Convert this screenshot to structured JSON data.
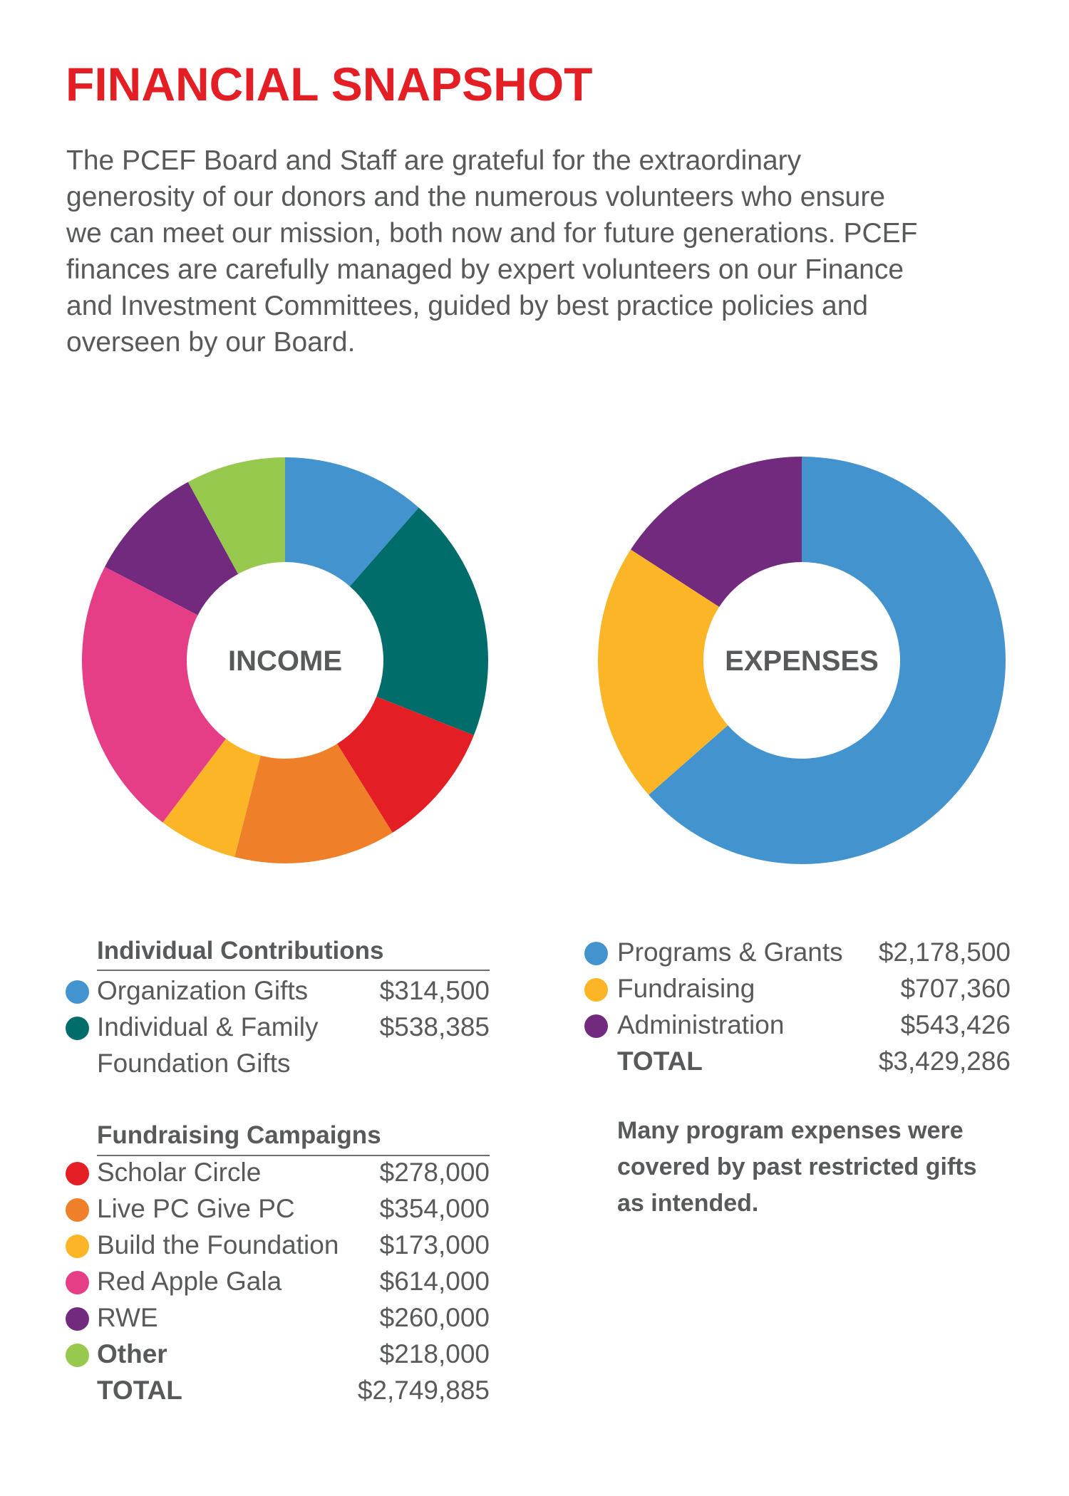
{
  "title": "FINANCIAL SNAPSHOT",
  "intro_lines": [
    "The PCEF Board and Staff are grateful for the extraordinary",
    "generosity of our donors and the numerous volunteers who ensure",
    "we can meet our mission, both now and for future generations. PCEF",
    "finances are carefully managed by expert volunteers on our Finance",
    "and Investment Committees, guided by best practice policies and",
    "overseen by our Board."
  ],
  "income": {
    "center_label": "INCOME",
    "group1_heading": "Individual Contributions",
    "group2_heading": "Fundraising Campaigns",
    "items": [
      {
        "label": "Organization Gifts",
        "value": "$314,500",
        "color": "#4393cf"
      },
      {
        "label": "Individual & Family",
        "label2": "Foundation Gifts",
        "value": "$538,385",
        "color": "#016d6a"
      },
      {
        "label": "Scholar Circle",
        "value": "$278,000",
        "color": "#e31e24"
      },
      {
        "label": "Live PC Give PC",
        "value": "$354,000",
        "color": "#f07f2a"
      },
      {
        "label": "Build the Foundation",
        "value": "$173,000",
        "color": "#fbb526"
      },
      {
        "label": "Red Apple Gala",
        "value": "$614,000",
        "color": "#e63e86"
      },
      {
        "label": "RWE",
        "value": "$260,000",
        "color": "#722a7f"
      },
      {
        "label": "Other",
        "value": "$218,000",
        "color": "#97c94e"
      }
    ],
    "total_label": "TOTAL",
    "total_value": "$2,749,885"
  },
  "expenses": {
    "center_label": "EXPENSES",
    "items": [
      {
        "label": "Programs & Grants",
        "value": "$2,178,500",
        "color": "#4393cf"
      },
      {
        "label": "Fundraising",
        "value": "$707,360",
        "color": "#fbb526"
      },
      {
        "label": "Administration",
        "value": "$543,426",
        "color": "#722a7f"
      }
    ],
    "total_label": "TOTAL",
    "total_value": "$3,429,286",
    "note_lines": [
      "Many program expenses were",
      "covered by past restricted gifts",
      "as intended."
    ]
  },
  "chart_data": [
    {
      "type": "pie",
      "title": "INCOME",
      "categories": [
        "Organization Gifts",
        "Individual & Family Foundation Gifts",
        "Scholar Circle",
        "Live PC Give PC",
        "Build the Foundation",
        "Red Apple Gala",
        "RWE",
        "Other"
      ],
      "values": [
        314500,
        538385,
        278000,
        354000,
        173000,
        614000,
        260000,
        218000
      ],
      "colors": [
        "#4393cf",
        "#016d6a",
        "#e31e24",
        "#f07f2a",
        "#fbb526",
        "#e63e86",
        "#722a7f",
        "#97c94e"
      ],
      "donut": true
    },
    {
      "type": "pie",
      "title": "EXPENSES",
      "categories": [
        "Programs & Grants",
        "Fundraising",
        "Administration"
      ],
      "values": [
        2178500,
        707360,
        543426
      ],
      "colors": [
        "#4393cf",
        "#fbb526",
        "#722a7f"
      ],
      "donut": true
    }
  ]
}
